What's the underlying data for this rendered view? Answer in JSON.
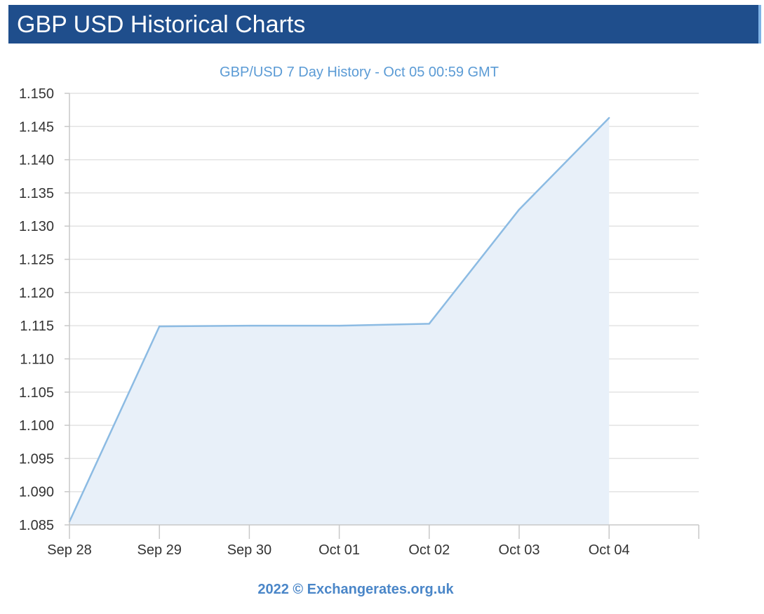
{
  "header": {
    "title": "GBP USD Historical Charts"
  },
  "chart_data": {
    "type": "area",
    "title": "GBP/USD 7 Day History - Oct 05 00:59 GMT",
    "categories": [
      "Sep 28",
      "Sep 29",
      "Sep 30",
      "Oct 01",
      "Oct 02",
      "Oct 03",
      "Oct 04"
    ],
    "values": [
      1.0855,
      1.1149,
      1.115,
      1.115,
      1.1153,
      1.1325,
      1.1463
    ],
    "ylim": [
      1.085,
      1.15
    ],
    "yticks": [
      "1.085",
      "1.090",
      "1.095",
      "1.100",
      "1.105",
      "1.110",
      "1.115",
      "1.120",
      "1.125",
      "1.130",
      "1.135",
      "1.140",
      "1.145",
      "1.150"
    ],
    "xlabel": "",
    "ylabel": "",
    "grid": true,
    "credit": "2022 © Exchangerates.org.uk",
    "colors": {
      "line": "#8cbbe3",
      "fill": "#e8f0f9",
      "title": "#5b9bd5",
      "credit": "#4a86c8",
      "grid": "#e3e3e3",
      "axis": "#c8c8c8",
      "tick_text": "#333333"
    }
  }
}
